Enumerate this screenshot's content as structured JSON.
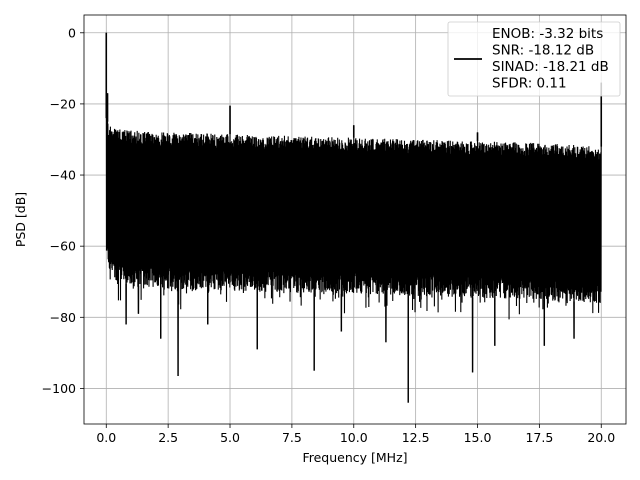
{
  "chart_data": {
    "type": "line",
    "title": "",
    "xlabel": "Frequency [MHz]",
    "ylabel": "PSD [dB]",
    "xlim": [
      -0.9,
      21.0
    ],
    "ylim": [
      -110,
      5
    ],
    "grid": true,
    "legend_position": "top-right",
    "x_ticks": [
      0.0,
      2.5,
      5.0,
      7.5,
      10.0,
      12.5,
      15.0,
      17.5,
      20.0
    ],
    "x_tick_labels": [
      "0.0",
      "2.5",
      "5.0",
      "7.5",
      "10.0",
      "12.5",
      "15.0",
      "17.5",
      "20.0"
    ],
    "y_ticks": [
      0,
      -20,
      -40,
      -60,
      -80,
      -100
    ],
    "y_tick_labels": [
      "0",
      "−20",
      "−40",
      "−60",
      "−80",
      "−100"
    ],
    "series": [
      {
        "color": "#000000",
        "x_range_mhz": [
          0.0,
          20.0
        ],
        "envelope": {
          "x": [
            0.0,
            0.1,
            0.5,
            1.0,
            2.5,
            5.0,
            7.5,
            10.0,
            12.5,
            15.0,
            17.5,
            20.0
          ],
          "upper": [
            -24,
            -26,
            -27,
            -27.5,
            -28,
            -28.5,
            -29,
            -29.5,
            -30,
            -30.5,
            -31,
            -32
          ],
          "lower": [
            -62,
            -68,
            -70,
            -71,
            -72,
            -72.5,
            -73,
            -73.5,
            -74,
            -74.5,
            -75,
            -76
          ]
        },
        "spurs": [
          {
            "x": 0.0,
            "y": 0
          },
          {
            "x": 0.05,
            "y": -17
          },
          {
            "x": 5.0,
            "y": -20.5
          },
          {
            "x": 10.0,
            "y": -26
          },
          {
            "x": 15.0,
            "y": -28
          },
          {
            "x": 20.0,
            "y": -14
          }
        ],
        "dips": [
          {
            "x": 0.8,
            "y": -82
          },
          {
            "x": 1.3,
            "y": -79
          },
          {
            "x": 2.2,
            "y": -86
          },
          {
            "x": 2.9,
            "y": -96.5
          },
          {
            "x": 4.1,
            "y": -82
          },
          {
            "x": 6.1,
            "y": -89
          },
          {
            "x": 8.4,
            "y": -95
          },
          {
            "x": 9.5,
            "y": -84
          },
          {
            "x": 11.3,
            "y": -87
          },
          {
            "x": 12.2,
            "y": -104
          },
          {
            "x": 14.8,
            "y": -95.5
          },
          {
            "x": 15.7,
            "y": -88
          },
          {
            "x": 17.7,
            "y": -88
          },
          {
            "x": 18.9,
            "y": -86
          }
        ]
      }
    ],
    "legend": {
      "lines": [
        "ENOB: -3.32 bits",
        "SNR: -18.12 dB",
        "SINAD: -18.21 dB",
        "SFDR: 0.11"
      ]
    }
  }
}
